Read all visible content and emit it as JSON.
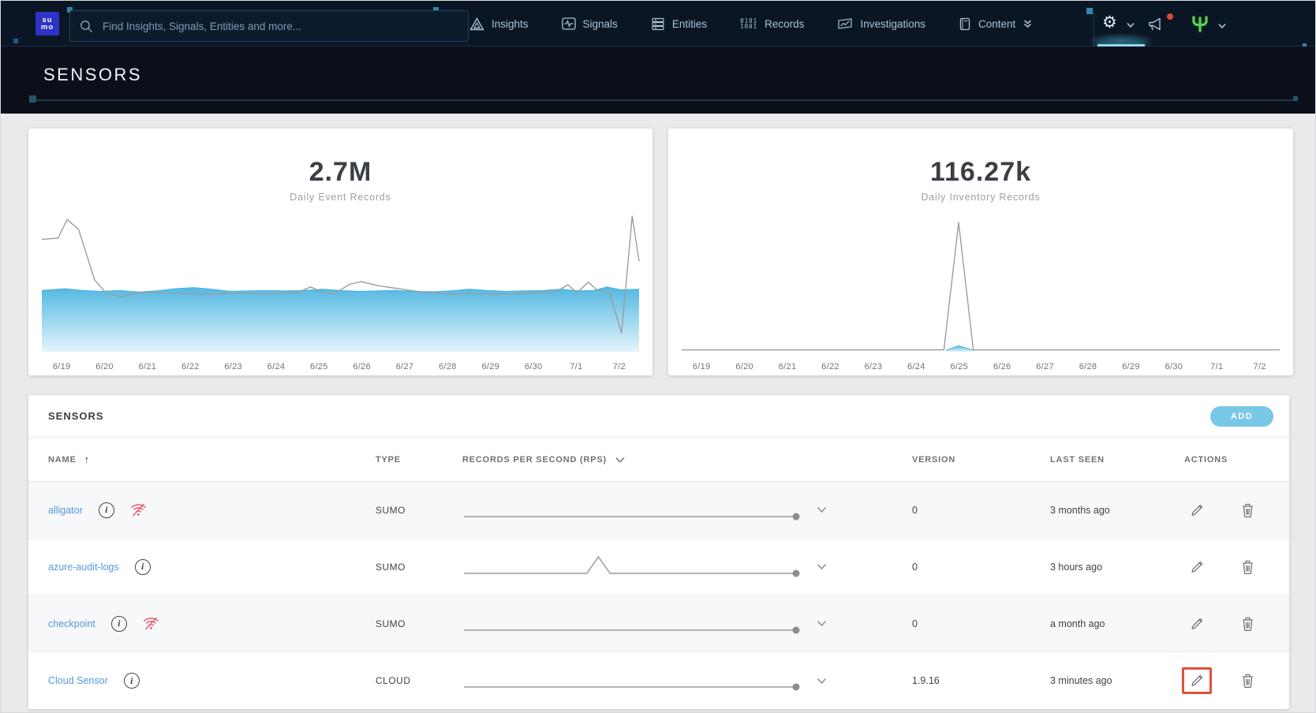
{
  "colors": {
    "accent_teal": "#4cc3e6",
    "add_button_blue": "#79c8e8",
    "highlight_red": "#e2503c",
    "link_blue": "#5697dd",
    "area_blue": "#49b4e1",
    "logo_blue": "#2d33c5",
    "offline_red": "#e4606e"
  },
  "topnav": {
    "logo_line1": "su",
    "logo_line2": "mo",
    "search": {
      "placeholder": "Find Insights, Signals, Entities and more...",
      "value": ""
    },
    "items": [
      {
        "label": "Insights",
        "icon": "insights-triangle-icon"
      },
      {
        "label": "Signals",
        "icon": "signals-pulse-icon"
      },
      {
        "label": "Entities",
        "icon": "entities-stack-icon"
      },
      {
        "label": "Records",
        "icon": "records-binary-icon"
      },
      {
        "label": "Investigations",
        "icon": "investigations-chart-icon"
      },
      {
        "label": "Content",
        "icon": "content-book-icon"
      }
    ]
  },
  "page": {
    "title": "SENSORS"
  },
  "chart_data": [
    {
      "type": "area",
      "title": "2.7M",
      "subtitle": "Daily Event Records",
      "unit": "records per day (millions)",
      "x_labels": [
        "6/19",
        "6/20",
        "6/21",
        "6/22",
        "6/23",
        "6/24",
        "6/25",
        "6/26",
        "6/27",
        "6/28",
        "6/29",
        "6/30",
        "7/1",
        "7/2"
      ],
      "ylim": [
        0,
        6.5
      ],
      "legend": "none",
      "grid": false,
      "series": [
        {
          "name": "ingested-events-area",
          "style": "area-blue",
          "points": [
            [
              0,
              2.72
            ],
            [
              0.5,
              2.8
            ],
            [
              0.9,
              2.72
            ],
            [
              1.3,
              2.68
            ],
            [
              1.7,
              2.72
            ],
            [
              2.1,
              2.65
            ],
            [
              2.5,
              2.7
            ],
            [
              2.9,
              2.8
            ],
            [
              3.3,
              2.85
            ],
            [
              3.7,
              2.78
            ],
            [
              4.1,
              2.68
            ],
            [
              4.5,
              2.7
            ],
            [
              4.9,
              2.72
            ],
            [
              5.3,
              2.7
            ],
            [
              5.7,
              2.72
            ],
            [
              6.1,
              2.78
            ],
            [
              6.5,
              2.72
            ],
            [
              6.9,
              2.68
            ],
            [
              7.3,
              2.7
            ],
            [
              7.7,
              2.72
            ],
            [
              8.1,
              2.68
            ],
            [
              8.5,
              2.66
            ],
            [
              8.9,
              2.7
            ],
            [
              9.3,
              2.78
            ],
            [
              9.7,
              2.72
            ],
            [
              10.1,
              2.68
            ],
            [
              10.5,
              2.7
            ],
            [
              10.9,
              2.72
            ],
            [
              11.3,
              2.78
            ],
            [
              11.7,
              2.7
            ],
            [
              12.0,
              2.72
            ],
            [
              12.3,
              2.88
            ],
            [
              12.6,
              2.75
            ],
            [
              13,
              2.78
            ]
          ]
        },
        {
          "name": "daily-event-records-line",
          "style": "line-gray",
          "points": [
            [
              0,
              5.05
            ],
            [
              0.35,
              5.1
            ],
            [
              0.55,
              5.95
            ],
            [
              0.8,
              5.5
            ],
            [
              1.15,
              3.2
            ],
            [
              1.4,
              2.6
            ],
            [
              1.75,
              2.42
            ],
            [
              2.05,
              2.6
            ],
            [
              2.4,
              2.63
            ],
            [
              2.8,
              2.6
            ],
            [
              3.2,
              2.57
            ],
            [
              3.6,
              2.55
            ],
            [
              4.0,
              2.58
            ],
            [
              4.4,
              2.6
            ],
            [
              4.8,
              2.55
            ],
            [
              5.2,
              2.6
            ],
            [
              5.55,
              2.62
            ],
            [
              5.85,
              2.88
            ],
            [
              6.1,
              2.65
            ],
            [
              6.35,
              2.55
            ],
            [
              6.7,
              3.0
            ],
            [
              6.95,
              3.12
            ],
            [
              7.3,
              2.95
            ],
            [
              7.7,
              2.82
            ],
            [
              8.1,
              2.7
            ],
            [
              8.5,
              2.6
            ],
            [
              8.9,
              2.55
            ],
            [
              9.3,
              2.58
            ],
            [
              9.8,
              2.55
            ],
            [
              10.3,
              2.57
            ],
            [
              10.8,
              2.62
            ],
            [
              11.2,
              2.66
            ],
            [
              11.45,
              2.98
            ],
            [
              11.65,
              2.62
            ],
            [
              11.9,
              3.1
            ],
            [
              12.1,
              2.7
            ],
            [
              12.35,
              2.65
            ],
            [
              12.62,
              0.78
            ],
            [
              12.85,
              6.1
            ],
            [
              13,
              4.05
            ]
          ]
        }
      ]
    },
    {
      "type": "line",
      "title": "116.27k",
      "subtitle": "Daily Inventory Records",
      "unit": "records per day (thousands)",
      "x_labels": [
        "6/19",
        "6/20",
        "6/21",
        "6/22",
        "6/23",
        "6/24",
        "6/25",
        "6/26",
        "6/27",
        "6/28",
        "6/29",
        "6/30",
        "7/1",
        "7/2"
      ],
      "ylim": [
        0,
        130
      ],
      "legend": "none",
      "grid": false,
      "series": [
        {
          "name": "inventory-records-area",
          "style": "area-blue",
          "points": [
            [
              5.75,
              0
            ],
            [
              6.02,
              4
            ],
            [
              6.34,
              0
            ]
          ]
        },
        {
          "name": "daily-inventory-records-line",
          "style": "line-gray",
          "points": [
            [
              0,
              0.3
            ],
            [
              5.7,
              0.3
            ],
            [
              6.02,
              116.27
            ],
            [
              6.34,
              0.3
            ],
            [
              13,
              0.3
            ]
          ]
        }
      ]
    }
  ],
  "table": {
    "title": "SENSORS",
    "add_label": "ADD",
    "columns": [
      "NAME",
      "TYPE",
      "RECORDS PER SECOND (RPS)",
      "VERSION",
      "LAST SEEN",
      "ACTIONS"
    ],
    "sort": {
      "column": "NAME",
      "direction": "asc"
    },
    "rows": [
      {
        "name": "alligator",
        "offline": true,
        "type": "SUMO",
        "sparkline": [
          [
            0,
            0
          ],
          [
            1,
            0
          ]
        ],
        "version": "0",
        "last_seen": "3 months ago",
        "edit_highlighted": false
      },
      {
        "name": "azure-audit-logs",
        "offline": false,
        "type": "SUMO",
        "sparkline": [
          [
            0,
            0
          ],
          [
            0.37,
            0
          ],
          [
            0.405,
            1
          ],
          [
            0.44,
            0
          ],
          [
            1,
            0
          ]
        ],
        "version": "0",
        "last_seen": "3 hours ago",
        "edit_highlighted": false
      },
      {
        "name": "checkpoint",
        "offline": true,
        "type": "SUMO",
        "sparkline": [
          [
            0,
            0
          ],
          [
            1,
            0
          ]
        ],
        "version": "0",
        "last_seen": "a month ago",
        "edit_highlighted": false
      },
      {
        "name": "Cloud Sensor",
        "offline": false,
        "type": "CLOUD",
        "sparkline": [
          [
            0,
            0
          ],
          [
            1,
            0
          ]
        ],
        "version": "1.9.16",
        "last_seen": "3 minutes ago",
        "edit_highlighted": true
      }
    ]
  }
}
